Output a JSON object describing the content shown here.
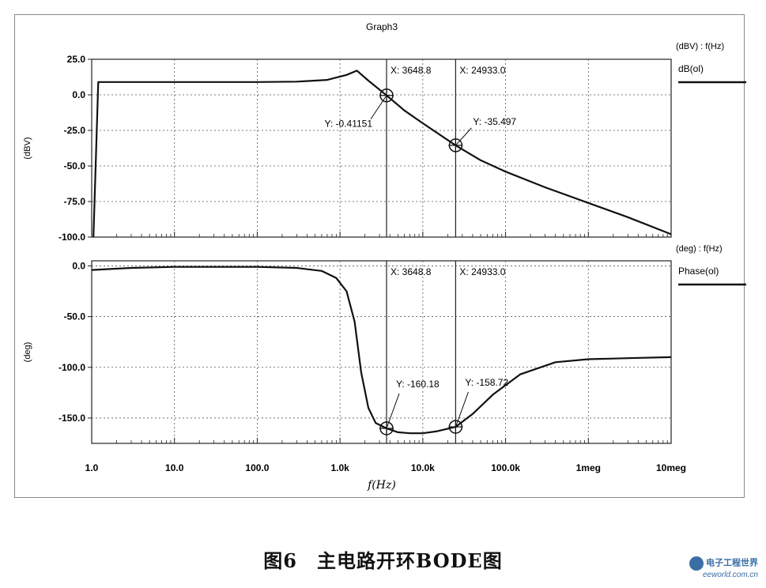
{
  "chart_data": {
    "type": "line",
    "title": "Graph3",
    "xlabel": "f(Hz)",
    "x_scale": "log",
    "x_ticks": [
      1,
      10,
      100,
      1000,
      10000,
      100000,
      1000000,
      10000000
    ],
    "x_tick_labels": [
      "1.0",
      "10.0",
      "100.0",
      "1.0k",
      "10.0k",
      "100.0k",
      "1meg",
      "10meg"
    ],
    "xlim": [
      1,
      10000000
    ],
    "grid": true,
    "panels": [
      {
        "id": "magnitude",
        "ylabel": "(dBV)",
        "legend_header": "(dBV) : f(Hz)",
        "series_name": "dB(ol)",
        "ylim": [
          -100,
          25
        ],
        "y_ticks": [
          25,
          0,
          -25,
          -50,
          -75,
          -100
        ],
        "y_tick_labels": [
          "25.0",
          "0.0",
          "-25.0",
          "-50.0",
          "-75.0",
          "-100.0"
        ],
        "x": [
          1.05,
          1.2,
          10,
          100,
          300,
          700,
          1200,
          1600,
          2200,
          3648.8,
          6000,
          10000,
          24933,
          50000,
          100000,
          300000,
          1000000,
          3000000,
          10000000
        ],
        "y": [
          -100,
          9,
          9,
          9,
          9.3,
          10.5,
          14,
          17,
          10,
          -0.41151,
          -11,
          -20,
          -35.497,
          -46,
          -54,
          -65,
          -76,
          -86,
          -98
        ],
        "cursors": [
          {
            "x_label": "X: 3648.8",
            "y_label": "Y: -0.41151",
            "x": 3648.8,
            "y": -0.41151
          },
          {
            "x_label": "X: 24933.0",
            "y_label": "Y: -35.497",
            "x": 24933,
            "y": -35.497
          }
        ]
      },
      {
        "id": "phase",
        "ylabel": "(deg)",
        "legend_header": "(deg) : f(Hz)",
        "series_name": "Phase(ol)",
        "ylim": [
          -175,
          5
        ],
        "y_ticks": [
          0,
          -50,
          -100,
          -150
        ],
        "y_tick_labels": [
          "0.0",
          "-50.0",
          "-100.0",
          "-150.0"
        ],
        "x": [
          1,
          3,
          10,
          100,
          300,
          600,
          900,
          1200,
          1500,
          1800,
          2200,
          2700,
          3648.8,
          5000,
          7000,
          10000,
          15000,
          24933,
          40000,
          70000,
          150000,
          400000,
          1000000,
          3000000,
          10000000
        ],
        "y": [
          -4,
          -2,
          -1,
          -1,
          -2,
          -5,
          -12,
          -25,
          -55,
          -105,
          -140,
          -155,
          -160.18,
          -164,
          -165,
          -165,
          -163,
          -158.72,
          -146,
          -127,
          -107,
          -95,
          -92,
          -91,
          -90
        ],
        "cursors": [
          {
            "x_label": "X: 3648.8",
            "y_label": "Y: -160.18",
            "x": 3648.8,
            "y": -160.18
          },
          {
            "x_label": "X: 24933.0",
            "y_label": "Y: -158.72",
            "x": 24933,
            "y": -158.72
          }
        ]
      }
    ]
  },
  "caption": "图6　主电路开环BODE图",
  "watermark": {
    "brand": "电子工程世界",
    "site": "eeworld.com.cn"
  },
  "colors": {
    "trace": "#111111",
    "grid": "#555555",
    "axes": "#222222"
  }
}
